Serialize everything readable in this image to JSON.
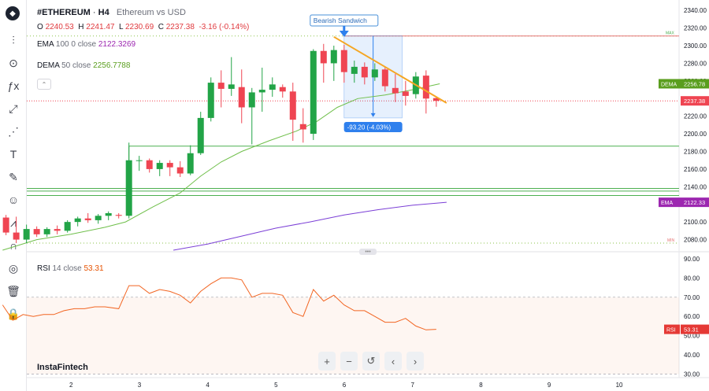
{
  "header": {
    "symbol": "#ETHEREUM",
    "sep": "·",
    "timeframe": "H4",
    "description": "Ethereum vs USD"
  },
  "ohlc": {
    "o_label": "O",
    "o": "2240.53",
    "h_label": "H",
    "h": "2241.47",
    "l_label": "L",
    "l": "2230.69",
    "c_label": "C",
    "c": "2237.38",
    "change": "-3.16 (-0.14%)"
  },
  "indicators": {
    "ema": {
      "name": "EMA",
      "params": "100 0 close",
      "value": "2122.3269",
      "tag": "EMA",
      "tag_value": "2122.33"
    },
    "dema": {
      "name": "DEMA",
      "params": "50 close",
      "value": "2256.7788",
      "tag": "DEMA",
      "tag_value": "2256.78"
    },
    "rsi": {
      "name": "RSI",
      "params": "14 close",
      "value": "53.31",
      "tag": "RSI",
      "tag_value": "53.31"
    }
  },
  "price_tag": "2237.38",
  "annotations": {
    "pattern": "Bearish Sandwich",
    "measure": "-93.20 (-4.03%)",
    "max_label": "MAX",
    "min_label": "MIN"
  },
  "watermark": "InstaFintech",
  "navigation": {
    "zoom_in": "+",
    "zoom_out": "−",
    "reset": "↺",
    "prev": "‹",
    "next": "›"
  },
  "drag_handle": "•••",
  "toolbar": {
    "logo": "◆",
    "tools": [
      {
        "name": "indicators-icon",
        "glyph": "⫶"
      },
      {
        "name": "compare-icon",
        "glyph": "⊙"
      },
      {
        "name": "function-icon",
        "glyph": "ƒx"
      },
      {
        "name": "trend-line-icon",
        "glyph": "⤢"
      },
      {
        "name": "fib-icon",
        "glyph": "⋰"
      },
      {
        "name": "text-icon",
        "glyph": "T"
      },
      {
        "name": "brush-icon",
        "glyph": "✎"
      },
      {
        "name": "emoji-icon",
        "glyph": "☺"
      },
      {
        "name": "pattern-icon",
        "glyph": "⩘"
      },
      {
        "name": "magnet-icon",
        "glyph": "∩"
      },
      {
        "name": "eye-icon",
        "glyph": "◎"
      },
      {
        "name": "delete-icon",
        "glyph": "🗑"
      },
      {
        "name": "lock-icon",
        "glyph": "🔒"
      }
    ]
  },
  "colors": {
    "up": "#22a447",
    "down": "#ef4552",
    "ema": "#7b3fd6",
    "dema": "#6fbf4a",
    "rsi": "#f26522",
    "trend": "#f5a623",
    "hline": "#4caf50",
    "measure": "#2f80ed"
  },
  "chart_data": {
    "type": "candlestick",
    "price_axis_ticks": [
      2080,
      2100,
      2120,
      2140,
      2160,
      2180,
      2200,
      2220,
      2240,
      2260,
      2280,
      2300,
      2320,
      2340
    ],
    "price_axis_labels": [
      "2080.00",
      "2100.00",
      "2120.00",
      "2140.00",
      "2160.00",
      "2180.00",
      "2200.00",
      "2220.00",
      "2240.00",
      "2260.00",
      "2280.00",
      "2300.00",
      "2320.00",
      "2340.00"
    ],
    "x_axis_labels": [
      "2",
      "3",
      "4",
      "5",
      "6",
      "7",
      "8",
      "9",
      "10"
    ],
    "ylim": [
      2068,
      2350
    ],
    "candles": [
      {
        "x": 1.05,
        "o": 2105,
        "h": 2108,
        "l": 2085,
        "c": 2088
      },
      {
        "x": 1.2,
        "o": 2088,
        "h": 2106,
        "l": 2076,
        "c": 2080
      },
      {
        "x": 1.35,
        "o": 2080,
        "h": 2097,
        "l": 2076,
        "c": 2092
      },
      {
        "x": 1.5,
        "o": 2092,
        "h": 2095,
        "l": 2083,
        "c": 2086
      },
      {
        "x": 1.65,
        "o": 2086,
        "h": 2094,
        "l": 2083,
        "c": 2092
      },
      {
        "x": 1.8,
        "o": 2092,
        "h": 2096,
        "l": 2086,
        "c": 2090
      },
      {
        "x": 1.95,
        "o": 2090,
        "h": 2102,
        "l": 2088,
        "c": 2100
      },
      {
        "x": 2.1,
        "o": 2100,
        "h": 2106,
        "l": 2095,
        "c": 2104
      },
      {
        "x": 2.25,
        "o": 2104,
        "h": 2110,
        "l": 2099,
        "c": 2102
      },
      {
        "x": 2.4,
        "o": 2102,
        "h": 2109,
        "l": 2098,
        "c": 2107
      },
      {
        "x": 2.55,
        "o": 2107,
        "h": 2112,
        "l": 2102,
        "c": 2110
      },
      {
        "x": 2.7,
        "o": 2108,
        "h": 2110,
        "l": 2104,
        "c": 2107
      },
      {
        "x": 2.85,
        "o": 2107,
        "h": 2190,
        "l": 2104,
        "c": 2170
      },
      {
        "x": 3.0,
        "o": 2170,
        "h": 2175,
        "l": 2158,
        "c": 2170
      },
      {
        "x": 3.15,
        "o": 2170,
        "h": 2172,
        "l": 2156,
        "c": 2160
      },
      {
        "x": 3.3,
        "o": 2160,
        "h": 2170,
        "l": 2152,
        "c": 2167
      },
      {
        "x": 3.45,
        "o": 2167,
        "h": 2170,
        "l": 2152,
        "c": 2162
      },
      {
        "x": 3.6,
        "o": 2162,
        "h": 2169,
        "l": 2151,
        "c": 2155
      },
      {
        "x": 3.75,
        "o": 2155,
        "h": 2187,
        "l": 2153,
        "c": 2178
      },
      {
        "x": 3.9,
        "o": 2178,
        "h": 2225,
        "l": 2176,
        "c": 2218
      },
      {
        "x": 4.05,
        "o": 2218,
        "h": 2264,
        "l": 2214,
        "c": 2258
      },
      {
        "x": 4.2,
        "o": 2258,
        "h": 2272,
        "l": 2230,
        "c": 2251
      },
      {
        "x": 4.35,
        "o": 2251,
        "h": 2287,
        "l": 2243,
        "c": 2256
      },
      {
        "x": 4.5,
        "o": 2253,
        "h": 2273,
        "l": 2212,
        "c": 2230
      },
      {
        "x": 4.65,
        "o": 2230,
        "h": 2252,
        "l": 2188,
        "c": 2247
      },
      {
        "x": 4.8,
        "o": 2247,
        "h": 2275,
        "l": 2225,
        "c": 2250
      },
      {
        "x": 4.95,
        "o": 2250,
        "h": 2264,
        "l": 2242,
        "c": 2256
      },
      {
        "x": 5.1,
        "o": 2253,
        "h": 2256,
        "l": 2241,
        "c": 2248
      },
      {
        "x": 5.25,
        "o": 2248,
        "h": 2258,
        "l": 2192,
        "c": 2216
      },
      {
        "x": 5.4,
        "o": 2211,
        "h": 2229,
        "l": 2190,
        "c": 2205
      },
      {
        "x": 5.55,
        "o": 2200,
        "h": 2296,
        "l": 2193,
        "c": 2294
      },
      {
        "x": 5.7,
        "o": 2294,
        "h": 2302,
        "l": 2258,
        "c": 2280
      },
      {
        "x": 5.85,
        "o": 2280,
        "h": 2300,
        "l": 2260,
        "c": 2295
      },
      {
        "x": 6.0,
        "o": 2295,
        "h": 2301,
        "l": 2258,
        "c": 2270
      },
      {
        "x": 6.15,
        "o": 2268,
        "h": 2283,
        "l": 2258,
        "c": 2276
      },
      {
        "x": 6.3,
        "o": 2276,
        "h": 2281,
        "l": 2256,
        "c": 2264
      },
      {
        "x": 6.45,
        "o": 2264,
        "h": 2280,
        "l": 2260,
        "c": 2273
      },
      {
        "x": 6.6,
        "o": 2273,
        "h": 2276,
        "l": 2248,
        "c": 2254
      },
      {
        "x": 6.75,
        "o": 2252,
        "h": 2268,
        "l": 2236,
        "c": 2246
      },
      {
        "x": 6.9,
        "o": 2248,
        "h": 2260,
        "l": 2232,
        "c": 2243
      },
      {
        "x": 7.05,
        "o": 2245,
        "h": 2270,
        "l": 2240,
        "c": 2265
      },
      {
        "x": 7.2,
        "o": 2266,
        "h": 2272,
        "l": 2223,
        "c": 2240
      },
      {
        "x": 7.35,
        "o": 2240.53,
        "h": 2241.47,
        "l": 2230.69,
        "c": 2237.38
      }
    ],
    "dema": [
      [
        1.0,
        2068
      ],
      [
        1.5,
        2080
      ],
      [
        2.0,
        2086
      ],
      [
        2.5,
        2094
      ],
      [
        2.8,
        2100
      ],
      [
        3.2,
        2117
      ],
      [
        3.6,
        2133
      ],
      [
        3.9,
        2152
      ],
      [
        4.2,
        2168
      ],
      [
        4.5,
        2180
      ],
      [
        4.9,
        2192
      ],
      [
        5.3,
        2203
      ],
      [
        5.6,
        2214
      ],
      [
        5.9,
        2230
      ],
      [
        6.2,
        2240
      ],
      [
        6.6,
        2244
      ],
      [
        7.0,
        2250
      ],
      [
        7.4,
        2256.78
      ]
    ],
    "ema": [
      [
        3.5,
        2068
      ],
      [
        4.0,
        2075
      ],
      [
        4.5,
        2084
      ],
      [
        5.0,
        2093
      ],
      [
        5.5,
        2100
      ],
      [
        6.0,
        2108
      ],
      [
        6.5,
        2114
      ],
      [
        7.0,
        2119
      ],
      [
        7.5,
        2122.33
      ]
    ],
    "rsi": {
      "ylim": [
        29,
        92
      ],
      "ticks": [
        "90.00",
        "80.00",
        "70.00",
        "60.00",
        "50.00",
        "40.00",
        "30.00"
      ],
      "tick_values": [
        90,
        80,
        70,
        60,
        50,
        40,
        30
      ],
      "levels": [
        70,
        30
      ],
      "points": [
        [
          1.0,
          66
        ],
        [
          1.15,
          58
        ],
        [
          1.3,
          61
        ],
        [
          1.45,
          60
        ],
        [
          1.6,
          61
        ],
        [
          1.75,
          61
        ],
        [
          1.9,
          63
        ],
        [
          2.05,
          64
        ],
        [
          2.2,
          64
        ],
        [
          2.35,
          65
        ],
        [
          2.5,
          65
        ],
        [
          2.7,
          64
        ],
        [
          2.85,
          76
        ],
        [
          3.0,
          76
        ],
        [
          3.15,
          72
        ],
        [
          3.3,
          74
        ],
        [
          3.45,
          73
        ],
        [
          3.6,
          71
        ],
        [
          3.75,
          67
        ],
        [
          3.9,
          73
        ],
        [
          4.05,
          77
        ],
        [
          4.2,
          80
        ],
        [
          4.35,
          80
        ],
        [
          4.5,
          79
        ],
        [
          4.65,
          70
        ],
        [
          4.8,
          72
        ],
        [
          4.95,
          72
        ],
        [
          5.1,
          71
        ],
        [
          5.25,
          62
        ],
        [
          5.4,
          60
        ],
        [
          5.55,
          74
        ],
        [
          5.7,
          68
        ],
        [
          5.85,
          71
        ],
        [
          6.0,
          66
        ],
        [
          6.15,
          63
        ],
        [
          6.3,
          63
        ],
        [
          6.45,
          60
        ],
        [
          6.6,
          57
        ],
        [
          6.75,
          57
        ],
        [
          6.9,
          59
        ],
        [
          7.05,
          55
        ],
        [
          7.2,
          53
        ],
        [
          7.35,
          53.31
        ]
      ]
    },
    "horizontal_lines": [
      2186,
      2138,
      2135,
      2130
    ],
    "trend_line": [
      [
        5.85,
        2310
      ],
      [
        7.5,
        2235
      ]
    ],
    "max_value": 2311,
    "min_value": 2076,
    "measure_box": {
      "x0": 6.0,
      "x1": 6.85,
      "y_top": 2311,
      "y_bottom": 2218
    }
  }
}
